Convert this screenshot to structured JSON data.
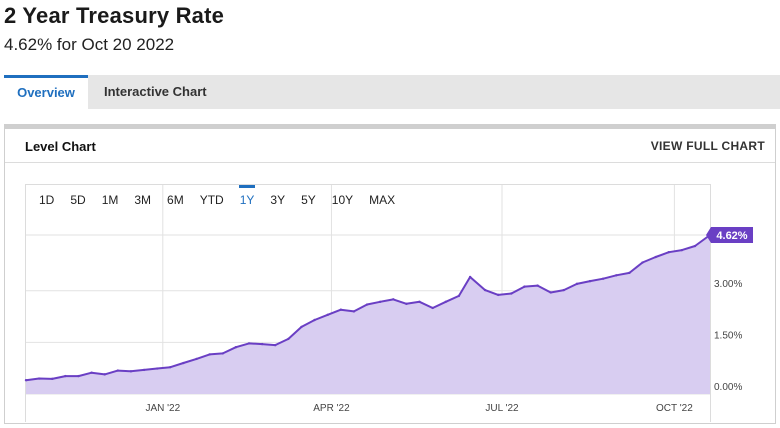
{
  "header": {
    "title": "2 Year Treasury Rate",
    "subtitle": "4.62% for Oct 20 2022"
  },
  "tabs": [
    {
      "label": "Overview",
      "active": true
    },
    {
      "label": "Interactive Chart",
      "active": false
    }
  ],
  "panel": {
    "title": "Level Chart",
    "view_full_label": "VIEW FULL CHART"
  },
  "ranges": [
    {
      "label": "1D"
    },
    {
      "label": "5D"
    },
    {
      "label": "1M"
    },
    {
      "label": "3M"
    },
    {
      "label": "6M"
    },
    {
      "label": "YTD"
    },
    {
      "label": "1Y",
      "active": true
    },
    {
      "label": "3Y"
    },
    {
      "label": "5Y"
    },
    {
      "label": "10Y"
    },
    {
      "label": "MAX"
    }
  ],
  "colors": {
    "line": "#6a3fc4",
    "fill": "#d8cdf1",
    "accent": "#1f6fbf",
    "grid": "#e2e2e2"
  },
  "chart_data": {
    "type": "area",
    "title": "",
    "xlabel": "",
    "ylabel": "",
    "y_tick_labels": [
      "0.00%",
      "1.50%",
      "3.00%"
    ],
    "y_ticks": [
      0,
      1.5,
      3.0
    ],
    "x_tick_labels": [
      "JAN '22",
      "APR '22",
      "JUL '22",
      "OCT '22"
    ],
    "x_ticks": [
      "2022-01-01",
      "2022-04-01",
      "2022-07-01",
      "2022-10-01"
    ],
    "ylim": [
      0,
      4.62
    ],
    "xlim": [
      "2021-10-20",
      "2022-10-20"
    ],
    "last_value_label": "4.62%",
    "grid": true,
    "series": [
      {
        "x": [
          "2021-10-20",
          "2021-10-27",
          "2021-11-03",
          "2021-11-10",
          "2021-11-17",
          "2021-11-24",
          "2021-12-01",
          "2021-12-08",
          "2021-12-15",
          "2021-12-22",
          "2021-12-29",
          "2022-01-05",
          "2022-01-12",
          "2022-01-19",
          "2022-01-26",
          "2022-02-02",
          "2022-02-09",
          "2022-02-16",
          "2022-02-23",
          "2022-03-02",
          "2022-03-09",
          "2022-03-16",
          "2022-03-23",
          "2022-03-30",
          "2022-04-06",
          "2022-04-13",
          "2022-04-20",
          "2022-04-27",
          "2022-05-04",
          "2022-05-11",
          "2022-05-18",
          "2022-05-25",
          "2022-06-01",
          "2022-06-08",
          "2022-06-14",
          "2022-06-22",
          "2022-06-29",
          "2022-07-06",
          "2022-07-13",
          "2022-07-20",
          "2022-07-27",
          "2022-08-03",
          "2022-08-10",
          "2022-08-17",
          "2022-08-24",
          "2022-08-31",
          "2022-09-07",
          "2022-09-14",
          "2022-09-21",
          "2022-09-28",
          "2022-10-05",
          "2022-10-12",
          "2022-10-20"
        ],
        "y": [
          0.4,
          0.45,
          0.44,
          0.52,
          0.52,
          0.62,
          0.57,
          0.68,
          0.66,
          0.7,
          0.74,
          0.78,
          0.9,
          1.02,
          1.15,
          1.18,
          1.36,
          1.47,
          1.45,
          1.42,
          1.6,
          1.95,
          2.15,
          2.3,
          2.45,
          2.4,
          2.6,
          2.68,
          2.75,
          2.62,
          2.68,
          2.5,
          2.68,
          2.85,
          3.4,
          3.02,
          2.88,
          2.92,
          3.12,
          3.15,
          2.95,
          3.02,
          3.2,
          3.28,
          3.35,
          3.45,
          3.52,
          3.82,
          3.98,
          4.12,
          4.18,
          4.3,
          4.62
        ]
      }
    ]
  }
}
